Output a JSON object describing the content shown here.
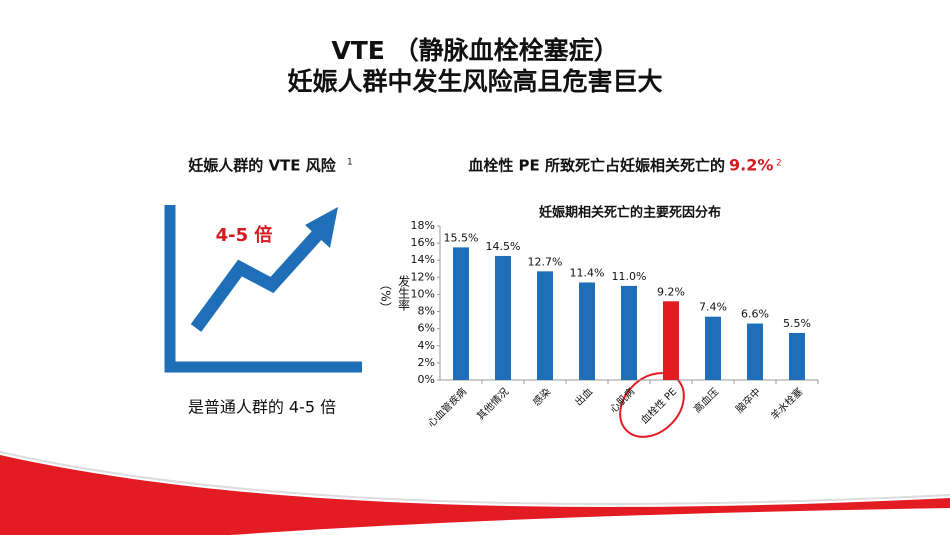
{
  "header": {
    "line1": "VTE （静脉血栓栓塞症）",
    "line2": "妊娠人群中发生风险高且危害巨大"
  },
  "left_panel": {
    "title": "妊娠人群的 VTE 风险",
    "title_ref": "1",
    "arrow_label": "4-5 倍",
    "caption": "是普通人群的 4-5 倍"
  },
  "right_panel": {
    "title": "血栓性 PE 所致死亡占妊娠相关死亡的",
    "highlight": "9.2%",
    "title_ref": "2"
  },
  "chart_data": {
    "type": "bar",
    "title": "妊娠期相关死亡的主要死因分布",
    "y_label": "发生率",
    "y_unit": "（%）",
    "categories": [
      "心血管疾病",
      "其他情况",
      "感染",
      "出血",
      "心肌病",
      "血栓性 PE",
      "高血压",
      "脑卒中",
      "羊水栓塞"
    ],
    "values": [
      15.5,
      14.5,
      12.7,
      11.4,
      11.0,
      9.2,
      7.4,
      6.6,
      5.5
    ],
    "value_labels": [
      "15.5%",
      "14.5%",
      "12.7%",
      "11.4%",
      "11.0%",
      "9.2%",
      "7.4%",
      "6.6%",
      "5.5%"
    ],
    "colors": [
      "#1f6fb8",
      "#1f6fb8",
      "#1f6fb8",
      "#1f6fb8",
      "#1f6fb8",
      "#e31b23",
      "#1f6fb8",
      "#1f6fb8",
      "#1f6fb8"
    ],
    "ylim": [
      0,
      18
    ],
    "yticks": [
      {
        "value": 0,
        "label": "0%"
      },
      {
        "value": 2,
        "label": "2%"
      },
      {
        "value": 4,
        "label": "4%"
      },
      {
        "value": 6,
        "label": "6%"
      },
      {
        "value": 8,
        "label": "8%"
      },
      {
        "value": 10,
        "label": "10%"
      },
      {
        "value": 12,
        "label": "12%"
      },
      {
        "value": 14,
        "label": "14%"
      },
      {
        "value": 16,
        "label": "16%"
      },
      {
        "value": 18,
        "label": "18%"
      }
    ]
  }
}
